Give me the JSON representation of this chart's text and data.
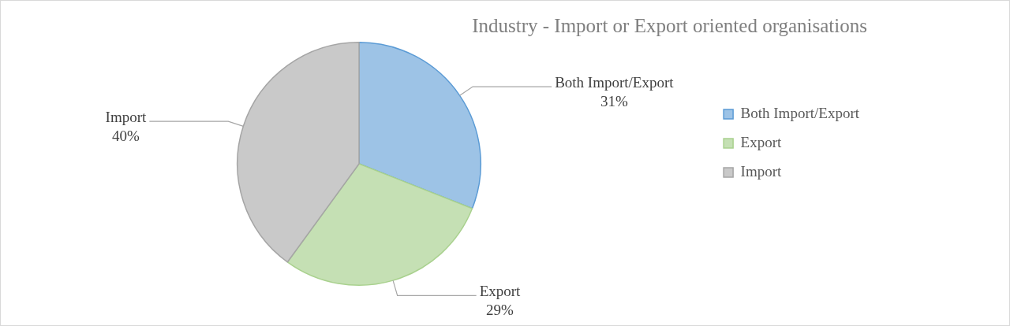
{
  "chart_data": {
    "type": "pie",
    "title": "Industry - Import or Export oriented organisations",
    "categories": [
      "Both Import/Export",
      "Export",
      "Import"
    ],
    "values": [
      31,
      29,
      40
    ],
    "value_labels": [
      "31%",
      "29%",
      "40%"
    ],
    "colors": [
      "#9dc3e6",
      "#c5e0b4",
      "#c9c9c9"
    ],
    "legend": "right"
  }
}
